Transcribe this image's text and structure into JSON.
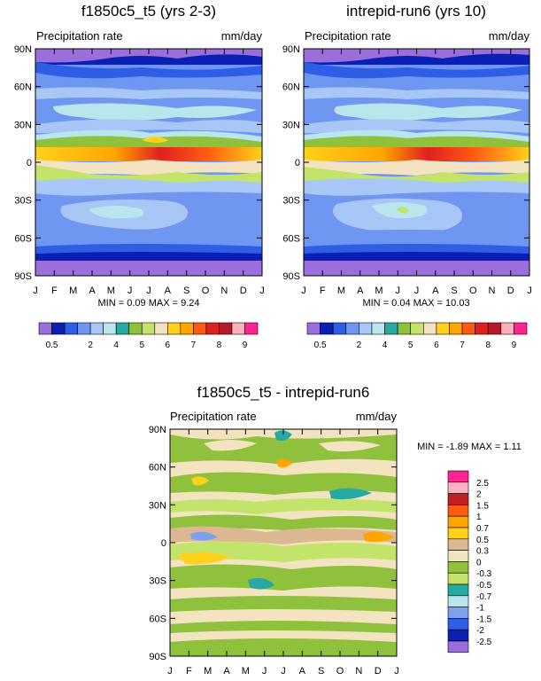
{
  "chart_data": [
    {
      "type": "heatmap",
      "title": "f1850c5_t5 (yrs 2-3)",
      "subtitle_left": "Precipitation rate",
      "subtitle_right": "mm/day",
      "x_ticks": [
        "J",
        "F",
        "M",
        "A",
        "M",
        "J",
        "J",
        "A",
        "S",
        "O",
        "N",
        "D",
        "J"
      ],
      "y_ticks": [
        "90N",
        "60N",
        "30N",
        "0",
        "30S",
        "60S",
        "90S"
      ],
      "y_values": [
        90,
        60,
        30,
        0,
        -30,
        -60,
        -90
      ],
      "stats": {
        "min_label": "MIN =",
        "min": "0.09",
        "max_label": "MAX =",
        "max": "9.24"
      },
      "colorbar_labels": [
        "0.5",
        "2",
        "4",
        "5",
        "6",
        "7",
        "8",
        "9"
      ]
    },
    {
      "type": "heatmap",
      "title": "intrepid-run6 (yrs 10)",
      "subtitle_left": "Precipitation rate",
      "subtitle_right": "mm/day",
      "x_ticks": [
        "J",
        "F",
        "M",
        "A",
        "M",
        "J",
        "J",
        "A",
        "S",
        "O",
        "N",
        "D",
        "J"
      ],
      "y_ticks": [
        "90N",
        "60N",
        "30N",
        "0",
        "30S",
        "60S",
        "90S"
      ],
      "y_values": [
        90,
        60,
        30,
        0,
        -30,
        -60,
        -90
      ],
      "stats": {
        "min_label": "MIN =",
        "min": "0.04",
        "max_label": "MAX =",
        "max": "10.03"
      },
      "colorbar_labels": [
        "0.5",
        "2",
        "4",
        "5",
        "6",
        "7",
        "8",
        "9"
      ]
    },
    {
      "type": "heatmap",
      "title": "f1850c5_t5 - intrepid-run6",
      "subtitle_left": "Precipitation rate",
      "subtitle_right": "mm/day",
      "x_ticks": [
        "J",
        "F",
        "M",
        "A",
        "M",
        "J",
        "J",
        "A",
        "S",
        "O",
        "N",
        "D",
        "J"
      ],
      "y_ticks": [
        "90N",
        "60N",
        "30N",
        "0",
        "30S",
        "60S",
        "90S"
      ],
      "y_values": [
        90,
        60,
        30,
        0,
        -30,
        -60,
        -90
      ],
      "stats": {
        "min_label": "MIN =",
        "min": "-1.89",
        "max_label": "MAX =",
        "max": "1.11"
      },
      "colorbar_labels": [
        "2.5",
        "2",
        "1.5",
        "1",
        "0.7",
        "0.5",
        "0.3",
        "0",
        "-0.3",
        "-0.5",
        "-0.7",
        "-1",
        "-1.5",
        "-2",
        "-2.5"
      ]
    }
  ],
  "colors": {
    "abs_scale": [
      "#9b6fdb",
      "#0a1fb4",
      "#2f5ee6",
      "#6f96f0",
      "#a8c6f6",
      "#b8e6ec",
      "#27a8a3",
      "#8fc13c",
      "#c3e46b",
      "#f4e3c0",
      "#ffd11a",
      "#ffa500",
      "#ff5a10",
      "#e02020",
      "#b01c2c",
      "#ffb0b8",
      "#ff2490"
    ],
    "diff_scale": [
      "#ff2490",
      "#ffb0c0",
      "#c02020",
      "#ff5a10",
      "#ffa500",
      "#ffd11a",
      "#dbb891",
      "#f4e3c0",
      "#8fc13c",
      "#c3e46b",
      "#27a8a3",
      "#b8e6ec",
      "#7ea0ee",
      "#2f5ee6",
      "#0a1fb4",
      "#9b6fdb"
    ]
  }
}
